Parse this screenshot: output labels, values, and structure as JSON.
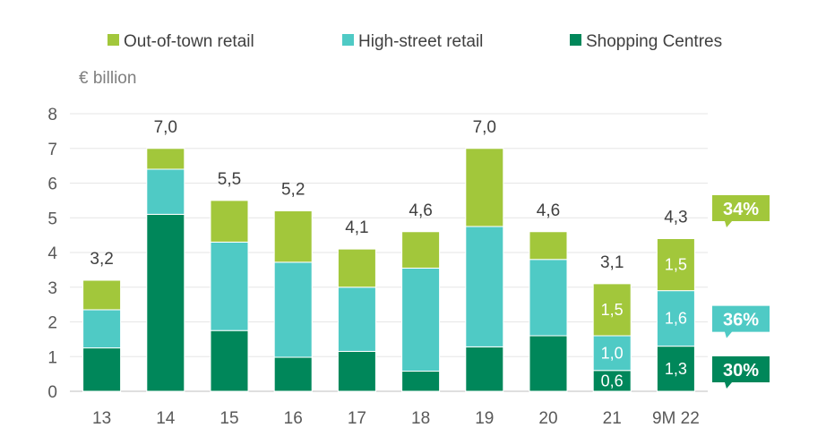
{
  "chart_data": {
    "type": "bar",
    "stacked": true,
    "unit_label": "€ billion",
    "categories": [
      "13",
      "14",
      "15",
      "16",
      "17",
      "18",
      "19",
      "20",
      "21",
      "9M 22"
    ],
    "series": [
      {
        "name": "Shopping Centres",
        "color": "#00875a",
        "values": [
          1.25,
          5.1,
          1.75,
          0.98,
          1.15,
          0.58,
          1.28,
          1.6,
          0.6,
          1.3
        ]
      },
      {
        "name": "High-street retail",
        "color": "#4fcac5",
        "values": [
          1.1,
          1.3,
          2.55,
          2.74,
          1.85,
          2.97,
          3.47,
          2.2,
          1.0,
          1.6
        ]
      },
      {
        "name": "Out-of-town retail",
        "color": "#a2c73b",
        "values": [
          0.85,
          0.6,
          1.2,
          1.48,
          1.1,
          1.05,
          2.25,
          0.8,
          1.5,
          1.5
        ]
      }
    ],
    "legend_order": [
      "Out-of-town retail",
      "High-street retail",
      "Shopping Centres"
    ],
    "legend_position": "top",
    "totals": [
      "3,2",
      "7,0",
      "5,5",
      "5,2",
      "4,1",
      "4,6",
      "7,0",
      "4,6",
      "3,1",
      "4,3"
    ],
    "segment_labels": [
      {
        "category": "21",
        "series": "Shopping Centres",
        "text": "0,6"
      },
      {
        "category": "21",
        "series": "High-street retail",
        "text": "1,0"
      },
      {
        "category": "21",
        "series": "Out-of-town retail",
        "text": "1,5"
      },
      {
        "category": "9M 22",
        "series": "Shopping Centres",
        "text": "1,3"
      },
      {
        "category": "9M 22",
        "series": "High-street retail",
        "text": "1,6"
      },
      {
        "category": "9M 22",
        "series": "Out-of-town retail",
        "text": "1,5"
      }
    ],
    "share_callouts": [
      {
        "series": "Out-of-town retail",
        "text": "34%",
        "color": "#a2c73b"
      },
      {
        "series": "High-street retail",
        "text": "36%",
        "color": "#4fcac5"
      },
      {
        "series": "Shopping Centres",
        "text": "30%",
        "color": "#00875a"
      }
    ],
    "y_ticks": [
      "0",
      "1",
      "2",
      "3",
      "4",
      "5",
      "6",
      "7",
      "8"
    ],
    "ylim": [
      0,
      8
    ],
    "grid": true,
    "xlabel": "",
    "ylabel": ""
  }
}
